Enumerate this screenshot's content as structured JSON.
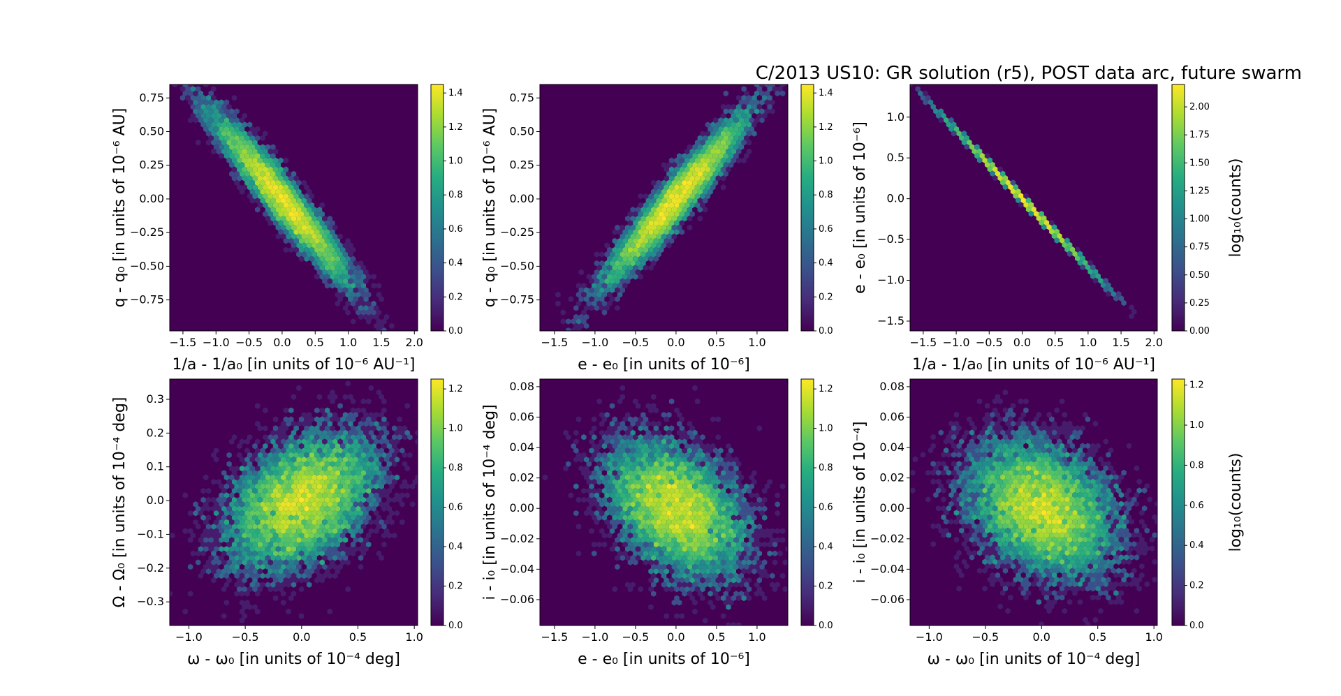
{
  "title": "C/2013 US10: GR solution (r5), POST data arc, future swarm",
  "colors": {
    "background": "#440154",
    "viridis": [
      "#440154",
      "#472c7a",
      "#3b518b",
      "#2c718e",
      "#21908d",
      "#27ad81",
      "#5cc863",
      "#aadc32",
      "#fde725"
    ]
  },
  "chart_data": [
    {
      "type": "hexbin",
      "id": "p1",
      "xlabel": "1/a - 1/a₀ [in units of 10⁻⁶ AU⁻¹]",
      "ylabel": "q - q₀ [in units of 10⁻⁶ AU]",
      "xlim": [
        -1.7,
        2.05
      ],
      "ylim": [
        -0.98,
        0.85
      ],
      "xticks": [
        -1.5,
        -1.0,
        -0.5,
        0.0,
        0.5,
        1.0,
        1.5,
        2.0
      ],
      "xtick_labels": [
        "−1.5",
        "−1.0",
        "−0.5",
        "0.0",
        "0.5",
        "1.0",
        "1.5",
        "2.0"
      ],
      "yticks": [
        -0.75,
        -0.5,
        -0.25,
        0.0,
        0.25,
        0.5,
        0.75
      ],
      "ytick_labels": [
        "−0.75",
        "−0.50",
        "−0.25",
        "0.00",
        "0.25",
        "0.50",
        "0.75"
      ],
      "distribution": {
        "sx": 0.5,
        "sy": 0.3,
        "rho": -0.95
      },
      "colorbar": {
        "lim": [
          0,
          1.45
        ],
        "ticks": [
          0.0,
          0.2,
          0.4,
          0.6,
          0.8,
          1.0,
          1.2,
          1.4
        ],
        "tick_labels": [
          "0.0",
          "0.2",
          "0.4",
          "0.6",
          "0.8",
          "1.0",
          "1.2",
          "1.4"
        ],
        "label": ""
      }
    },
    {
      "type": "hexbin",
      "id": "p2",
      "xlabel": "e - e₀ [in units of 10⁻⁶]",
      "ylabel": "q - q₀ [in units of 10⁻⁶ AU]",
      "xlim": [
        -1.68,
        1.38
      ],
      "ylim": [
        -0.98,
        0.85
      ],
      "xticks": [
        -1.5,
        -1.0,
        -0.5,
        0.0,
        0.5,
        1.0
      ],
      "xtick_labels": [
        "−1.5",
        "−1.0",
        "−0.5",
        "0.0",
        "0.5",
        "1.0"
      ],
      "yticks": [
        -0.75,
        -0.5,
        -0.25,
        0.0,
        0.25,
        0.5,
        0.75
      ],
      "ytick_labels": [
        "−0.75",
        "−0.50",
        "−0.25",
        "0.00",
        "0.25",
        "0.50",
        "0.75"
      ],
      "distribution": {
        "sx": 0.42,
        "sy": 0.3,
        "rho": 0.95
      },
      "colorbar": {
        "lim": [
          0,
          1.45
        ],
        "ticks": [
          0.0,
          0.2,
          0.4,
          0.6,
          0.8,
          1.0,
          1.2,
          1.4
        ],
        "tick_labels": [
          "0.0",
          "0.2",
          "0.4",
          "0.6",
          "0.8",
          "1.0",
          "1.2",
          "1.4"
        ],
        "label": ""
      }
    },
    {
      "type": "hexbin",
      "id": "p3",
      "xlabel": "1/a - 1/a₀ [in units of 10⁻⁶ AU⁻¹]",
      "ylabel": "e - e₀ [in units of 10⁻⁶]",
      "xlim": [
        -1.7,
        2.05
      ],
      "ylim": [
        -1.62,
        1.4
      ],
      "xticks": [
        -1.5,
        -1.0,
        -0.5,
        0.0,
        0.5,
        1.0,
        1.5,
        2.0
      ],
      "xtick_labels": [
        "−1.5",
        "−1.0",
        "−0.5",
        "0.0",
        "0.5",
        "1.0",
        "1.5",
        "2.0"
      ],
      "yticks": [
        -1.5,
        -1.0,
        -0.5,
        0.0,
        0.5,
        1.0
      ],
      "ytick_labels": [
        "−1.5",
        "−1.0",
        "−0.5",
        "0.0",
        "0.5",
        "1.0"
      ],
      "distribution": {
        "sx": 0.5,
        "sy": 0.42,
        "rho": -0.9995
      },
      "colorbar": {
        "lim": [
          0,
          2.2
        ],
        "ticks": [
          0.0,
          0.25,
          0.5,
          0.75,
          1.0,
          1.25,
          1.5,
          1.75,
          2.0
        ],
        "tick_labels": [
          "0.00",
          "0.25",
          "0.50",
          "0.75",
          "1.00",
          "1.25",
          "1.50",
          "1.75",
          "2.00"
        ],
        "label": "log₁₀(counts)"
      }
    },
    {
      "type": "hexbin",
      "id": "p4",
      "xlabel": "ω - ω₀ [in units of 10⁻⁴ deg]",
      "ylabel": "Ω - Ω₀ [in units of 10⁻⁴ deg]",
      "xlim": [
        -1.17,
        1.03
      ],
      "ylim": [
        -0.37,
        0.36
      ],
      "xticks": [
        -1.0,
        -0.5,
        0.0,
        0.5,
        1.0
      ],
      "xtick_labels": [
        "−1.0",
        "−0.5",
        "0.0",
        "0.5",
        "1.0"
      ],
      "yticks": [
        -0.3,
        -0.2,
        -0.1,
        0.0,
        0.1,
        0.2,
        0.3
      ],
      "ytick_labels": [
        "−0.3",
        "−0.2",
        "−0.1",
        "0.0",
        "0.1",
        "0.2",
        "0.3"
      ],
      "distribution": {
        "sx": 0.33,
        "sy": 0.1,
        "rho": 0.4
      },
      "colorbar": {
        "lim": [
          0,
          1.25
        ],
        "ticks": [
          0.0,
          0.2,
          0.4,
          0.6,
          0.8,
          1.0,
          1.2
        ],
        "tick_labels": [
          "0.0",
          "0.2",
          "0.4",
          "0.6",
          "0.8",
          "1.0",
          "1.2"
        ],
        "label": ""
      }
    },
    {
      "type": "hexbin",
      "id": "p5",
      "xlabel": "e - e₀ [in units of 10⁻⁶]",
      "ylabel": "i - i₀ [in units of 10⁻⁴ deg]",
      "xlim": [
        -1.68,
        1.38
      ],
      "ylim": [
        -0.077,
        0.085
      ],
      "xticks": [
        -1.5,
        -1.0,
        -0.5,
        0.0,
        0.5,
        1.0
      ],
      "xtick_labels": [
        "−1.5",
        "−1.0",
        "−0.5",
        "0.0",
        "0.5",
        "1.0"
      ],
      "yticks": [
        -0.06,
        -0.04,
        -0.02,
        0.0,
        0.02,
        0.04,
        0.06,
        0.08
      ],
      "ytick_labels": [
        "−0.06",
        "−0.04",
        "−0.02",
        "0.00",
        "0.02",
        "0.04",
        "0.06",
        "0.08"
      ],
      "distribution": {
        "sx": 0.42,
        "sy": 0.022,
        "rho": -0.4
      },
      "colorbar": {
        "lim": [
          0,
          1.25
        ],
        "ticks": [
          0.0,
          0.2,
          0.4,
          0.6,
          0.8,
          1.0,
          1.2
        ],
        "tick_labels": [
          "0.0",
          "0.2",
          "0.4",
          "0.6",
          "0.8",
          "1.0",
          "1.2"
        ],
        "label": ""
      }
    },
    {
      "type": "hexbin",
      "id": "p6",
      "xlabel": "ω - ω₀ [in units of 10⁻⁴ deg]",
      "ylabel": "i - i₀ [in units of 10⁻⁴]",
      "xlim": [
        -1.17,
        1.03
      ],
      "ylim": [
        -0.077,
        0.085
      ],
      "xticks": [
        -1.0,
        -0.5,
        0.0,
        0.5,
        1.0
      ],
      "xtick_labels": [
        "−1.0",
        "−0.5",
        "0.0",
        "0.5",
        "1.0"
      ],
      "yticks": [
        -0.06,
        -0.04,
        -0.02,
        0.0,
        0.02,
        0.04,
        0.06,
        0.08
      ],
      "ytick_labels": [
        "−0.06",
        "−0.04",
        "−0.02",
        "0.00",
        "0.02",
        "0.04",
        "0.06",
        "0.08"
      ],
      "distribution": {
        "sx": 0.33,
        "sy": 0.022,
        "rho": -0.3
      },
      "colorbar": {
        "lim": [
          0,
          1.23
        ],
        "ticks": [
          0.0,
          0.2,
          0.4,
          0.6,
          0.8,
          1.0,
          1.2
        ],
        "tick_labels": [
          "0.0",
          "0.2",
          "0.4",
          "0.6",
          "0.8",
          "1.0",
          "1.2"
        ],
        "label": "log₁₀(counts)"
      }
    }
  ]
}
